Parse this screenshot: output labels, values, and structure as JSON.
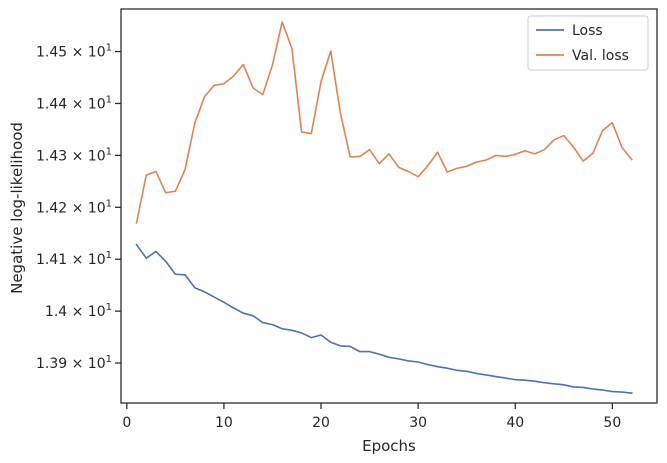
{
  "chart_data": {
    "type": "line",
    "xlabel": "Epochs",
    "ylabel": "Negative log-likelihood",
    "xlim": [
      -0.6,
      54.6
    ],
    "ylim": [
      13.823,
      14.582
    ],
    "x_ticks": [
      0,
      10,
      20,
      30,
      40,
      50
    ],
    "y_ticks": [
      {
        "value": 13.9,
        "mantissa": "1.39",
        "base": "10",
        "exp": "1"
      },
      {
        "value": 14.0,
        "mantissa": "1.4",
        "base": "10",
        "exp": "1"
      },
      {
        "value": 14.1,
        "mantissa": "1.41",
        "base": "10",
        "exp": "1"
      },
      {
        "value": 14.2,
        "mantissa": "1.42",
        "base": "10",
        "exp": "1"
      },
      {
        "value": 14.3,
        "mantissa": "1.43",
        "base": "10",
        "exp": "1"
      },
      {
        "value": 14.4,
        "mantissa": "1.44",
        "base": "10",
        "exp": "1"
      },
      {
        "value": 14.5,
        "mantissa": "1.45",
        "base": "10",
        "exp": "1"
      }
    ],
    "grid": false,
    "legend_position": "top-right",
    "x": [
      1,
      2,
      3,
      4,
      5,
      6,
      7,
      8,
      9,
      10,
      11,
      12,
      13,
      14,
      15,
      16,
      17,
      18,
      19,
      20,
      21,
      22,
      23,
      24,
      25,
      26,
      27,
      28,
      29,
      30,
      31,
      32,
      33,
      34,
      35,
      36,
      37,
      38,
      39,
      40,
      41,
      42,
      43,
      44,
      45,
      46,
      47,
      48,
      49,
      50,
      51,
      52
    ],
    "series": [
      {
        "name": "Loss",
        "color": "#4c72b0",
        "values": [
          14.128,
          14.102,
          14.115,
          14.096,
          14.071,
          14.07,
          14.045,
          14.037,
          14.027,
          14.017,
          14.006,
          13.996,
          13.991,
          13.978,
          13.974,
          13.966,
          13.963,
          13.958,
          13.949,
          13.954,
          13.94,
          13.933,
          13.932,
          13.922,
          13.922,
          13.917,
          13.911,
          13.908,
          13.904,
          13.902,
          13.897,
          13.893,
          13.89,
          13.886,
          13.884,
          13.88,
          13.877,
          13.874,
          13.871,
          13.868,
          13.867,
          13.865,
          13.862,
          13.86,
          13.858,
          13.854,
          13.853,
          13.85,
          13.848,
          13.845,
          13.844,
          13.842
        ]
      },
      {
        "name": "Val. loss",
        "color": "#dd8452",
        "values": [
          14.17,
          14.262,
          14.269,
          14.228,
          14.231,
          14.273,
          14.362,
          14.413,
          14.435,
          14.438,
          14.453,
          14.475,
          14.43,
          14.417,
          14.474,
          14.557,
          14.506,
          14.345,
          14.342,
          14.442,
          14.501,
          14.381,
          14.297,
          14.298,
          14.311,
          14.284,
          14.303,
          14.277,
          14.269,
          14.259,
          14.28,
          14.306,
          14.268,
          14.275,
          14.279,
          14.287,
          14.291,
          14.3,
          14.298,
          14.302,
          14.309,
          14.303,
          14.311,
          14.33,
          14.338,
          14.316,
          14.289,
          14.304,
          14.348,
          14.363,
          14.315,
          14.292
        ]
      }
    ]
  }
}
